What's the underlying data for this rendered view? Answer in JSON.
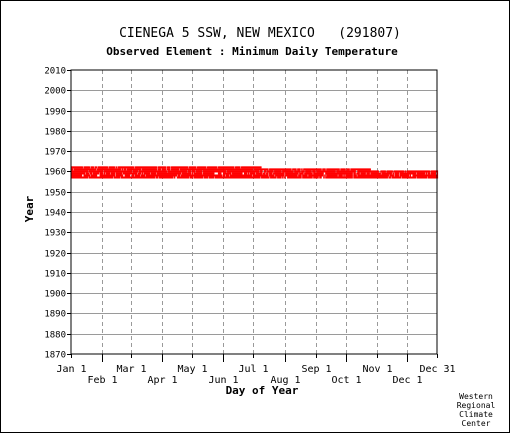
{
  "chart_data": {
    "type": "scatter",
    "title": "CIENEGA 5 SSW, NEW MEXICO   (291807)",
    "subtitle": "Observed Element : Minimum Daily Temperature",
    "xlabel": "Day of Year",
    "ylabel": "Year",
    "ylim": [
      1870,
      2010
    ],
    "y_ticks": [
      1870,
      1880,
      1890,
      1900,
      1910,
      1920,
      1930,
      1940,
      1950,
      1960,
      1970,
      1980,
      1990,
      2000,
      2010
    ],
    "xlim": [
      1,
      366
    ],
    "x_ticks": [
      {
        "label": "Jan 1",
        "day": 1,
        "row": 0
      },
      {
        "label": "Feb 1",
        "day": 32,
        "row": 1
      },
      {
        "label": "Mar 1",
        "day": 61,
        "row": 0
      },
      {
        "label": "Apr 1",
        "day": 92,
        "row": 1
      },
      {
        "label": "May 1",
        "day": 122,
        "row": 0
      },
      {
        "label": "Jun 1",
        "day": 153,
        "row": 1
      },
      {
        "label": "Jul 1",
        "day": 183,
        "row": 0
      },
      {
        "label": "Aug 1",
        "day": 214,
        "row": 1
      },
      {
        "label": "Sep 1",
        "day": 245,
        "row": 0
      },
      {
        "label": "Oct 1",
        "day": 275,
        "row": 1
      },
      {
        "label": "Nov 1",
        "day": 306,
        "row": 0
      },
      {
        "label": "Dec 1",
        "day": 336,
        "row": 1
      },
      {
        "label": "Dec 31",
        "day": 366,
        "row": 0
      }
    ],
    "grid": true,
    "color": "#ff0000",
    "records": [
      {
        "year": 1957,
        "start_day": 1,
        "end_day": 366
      },
      {
        "year": 1958,
        "start_day": 1,
        "end_day": 366
      },
      {
        "year": 1959,
        "start_day": 1,
        "end_day": 366
      },
      {
        "year": 1960,
        "start_day": 1,
        "end_day": 366
      },
      {
        "year": 1961,
        "start_day": 1,
        "end_day": 300
      },
      {
        "year": 1962,
        "start_day": 1,
        "end_day": 190
      }
    ]
  },
  "credit": [
    "Western",
    "Regional",
    "Climate",
    "Center"
  ]
}
